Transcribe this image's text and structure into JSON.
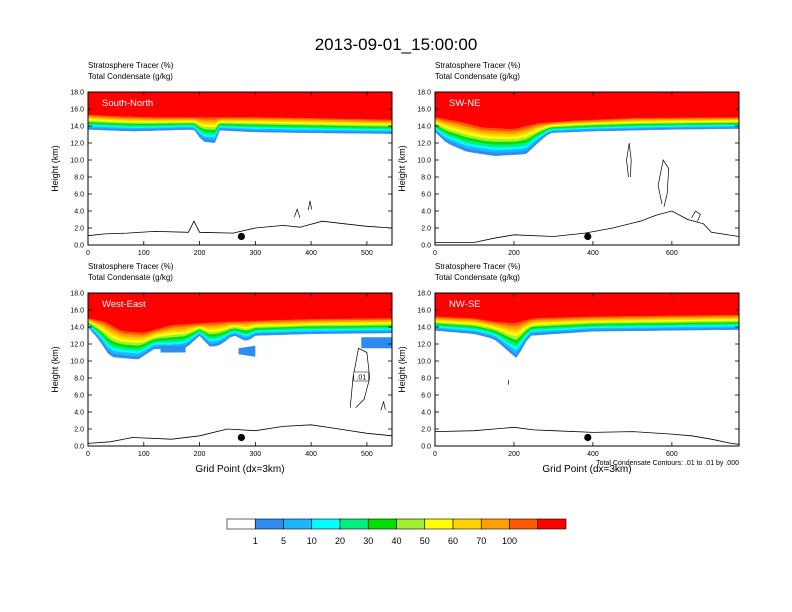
{
  "title": "2013-09-01_15:00:00",
  "footnote": "Total Condensate Contours: .01 to .01 by .000",
  "colorbar": {
    "colors": [
      "#ffffff",
      "#2e8cf0",
      "#1eb4ff",
      "#00ffff",
      "#00f080",
      "#00e000",
      "#a0f030",
      "#ffff00",
      "#ffd200",
      "#ffa000",
      "#ff5a00",
      "#ff0000"
    ],
    "labels": [
      "1",
      "5",
      "10",
      "20",
      "30",
      "40",
      "50",
      "60",
      "70",
      "100"
    ]
  },
  "chart_data": [
    {
      "type": "contour",
      "panel_label": "South-North",
      "title_line1": "Stratosphere Tracer   (%)",
      "title_line2": "Total Condensate   (g/kg)",
      "ylabel": "Height (km)",
      "xlabel": "",
      "xlim": [
        0,
        545
      ],
      "ylim": [
        0,
        18
      ],
      "xticks": [
        "0",
        "100",
        "200",
        "300",
        "400",
        "500"
      ],
      "xtick_values": [
        0,
        100,
        200,
        300,
        400,
        500
      ],
      "yticks": [
        "0.0",
        "2.0",
        "4.0",
        "6.0",
        "8.0",
        "10.0",
        "12.0",
        "14.0",
        "16.0",
        "18.0"
      ],
      "tracer_band_km": {
        "red_top_km": 18.0,
        "orange_lower_edge_km": [
          [
            0,
            15.3
          ],
          [
            60,
            15.1
          ],
          [
            120,
            15.0
          ],
          [
            200,
            15.0
          ],
          [
            300,
            15.0
          ],
          [
            400,
            14.9
          ],
          [
            545,
            14.7
          ]
        ],
        "tracer_bottom_km": [
          [
            0,
            13.6
          ],
          [
            80,
            13.4
          ],
          [
            190,
            13.6
          ],
          [
            205,
            12.2
          ],
          [
            230,
            12.0
          ],
          [
            235,
            13.5
          ],
          [
            300,
            13.3
          ],
          [
            400,
            13.2
          ],
          [
            545,
            13.1
          ]
        ]
      },
      "terrain_km": [
        [
          0,
          1.1
        ],
        [
          30,
          1.3
        ],
        [
          70,
          1.4
        ],
        [
          120,
          1.6
        ],
        [
          180,
          1.5
        ],
        [
          190,
          2.8
        ],
        [
          200,
          1.5
        ],
        [
          260,
          1.4
        ],
        [
          300,
          2.0
        ],
        [
          350,
          2.3
        ],
        [
          380,
          2.1
        ],
        [
          420,
          2.8
        ],
        [
          460,
          2.5
        ],
        [
          500,
          2.2
        ],
        [
          545,
          2.0
        ]
      ],
      "condensate_contours": [
        [
          [
            370,
            3.3
          ],
          [
            375,
            4.2
          ],
          [
            380,
            3.2
          ]
        ],
        [
          [
            395,
            4.1
          ],
          [
            398,
            5.2
          ],
          [
            401,
            4.2
          ]
        ]
      ],
      "marker": {
        "x": 275,
        "y_km": 1.0
      }
    },
    {
      "type": "contour",
      "panel_label": "SW-NE",
      "title_line1": "Stratosphere Tracer   (%)",
      "title_line2": "Total Condensate   (g/kg)",
      "ylabel": "Height (km)",
      "xlabel": "",
      "xlim": [
        0,
        770
      ],
      "ylim": [
        0,
        18
      ],
      "xticks": [
        "0",
        "200",
        "400",
        "600"
      ],
      "xtick_values": [
        0,
        200,
        400,
        600
      ],
      "yticks": [
        "0.0",
        "2.0",
        "4.0",
        "6.0",
        "8.0",
        "10.0",
        "12.0",
        "14.0",
        "16.0",
        "18.0"
      ],
      "tracer_band_km": {
        "red_top_km": 18.0,
        "orange_lower_edge_km": [
          [
            0,
            15.0
          ],
          [
            60,
            14.5
          ],
          [
            120,
            13.8
          ],
          [
            200,
            13.6
          ],
          [
            260,
            14.3
          ],
          [
            350,
            14.6
          ],
          [
            500,
            14.9
          ],
          [
            770,
            15.0
          ]
        ],
        "tracer_bottom_km": [
          [
            0,
            13.3
          ],
          [
            30,
            12.0
          ],
          [
            80,
            11.0
          ],
          [
            150,
            10.5
          ],
          [
            230,
            10.7
          ],
          [
            260,
            12.0
          ],
          [
            290,
            13.2
          ],
          [
            400,
            13.4
          ],
          [
            600,
            13.6
          ],
          [
            770,
            13.7
          ]
        ]
      },
      "terrain_km": [
        [
          0,
          0.3
        ],
        [
          100,
          0.3
        ],
        [
          150,
          0.8
        ],
        [
          200,
          1.2
        ],
        [
          300,
          1.0
        ],
        [
          380,
          1.4
        ],
        [
          450,
          2.0
        ],
        [
          520,
          2.8
        ],
        [
          560,
          3.5
        ],
        [
          600,
          4.0
        ],
        [
          640,
          3.0
        ],
        [
          680,
          2.5
        ],
        [
          700,
          1.5
        ],
        [
          770,
          1.0
        ]
      ],
      "condensate_contours": [
        [
          [
            490,
            8.0
          ],
          [
            485,
            10.0
          ],
          [
            492,
            12.0
          ],
          [
            497,
            10.0
          ],
          [
            495,
            8.0
          ]
        ],
        [
          [
            575,
            4.8
          ],
          [
            565,
            7.0
          ],
          [
            578,
            10.0
          ],
          [
            592,
            9.0
          ],
          [
            588,
            6.0
          ],
          [
            580,
            4.5
          ]
        ],
        [
          [
            650,
            3.2
          ],
          [
            660,
            4.0
          ],
          [
            672,
            3.6
          ],
          [
            665,
            2.8
          ]
        ]
      ],
      "marker": {
        "x": 387,
        "y_km": 1.0
      }
    },
    {
      "type": "contour",
      "panel_label": "West-East",
      "title_line1": "Stratosphere Tracer   (%)",
      "title_line2": "Total Condensate   (g/kg)",
      "ylabel": "Height (km)",
      "xlabel": "Grid Point (dx=3km)",
      "xlim": [
        0,
        545
      ],
      "ylim": [
        0,
        18
      ],
      "xticks": [
        "0",
        "100",
        "200",
        "300",
        "400",
        "500"
      ],
      "xtick_values": [
        0,
        100,
        200,
        300,
        400,
        500
      ],
      "yticks": [
        "0.0",
        "2.0",
        "4.0",
        "6.0",
        "8.0",
        "10.0",
        "12.0",
        "14.0",
        "16.0",
        "18.0"
      ],
      "tracer_band_km": {
        "red_top_km": 18.0,
        "orange_lower_edge_km": [
          [
            0,
            15.0
          ],
          [
            30,
            14.6
          ],
          [
            60,
            13.5
          ],
          [
            100,
            13.3
          ],
          [
            150,
            14.2
          ],
          [
            250,
            14.6
          ],
          [
            400,
            14.9
          ],
          [
            545,
            15.0
          ]
        ],
        "tracer_bottom_km": [
          [
            0,
            14.0
          ],
          [
            20,
            12.5
          ],
          [
            40,
            10.5
          ],
          [
            90,
            10.2
          ],
          [
            120,
            11.5
          ],
          [
            150,
            11.3
          ],
          [
            175,
            11.5
          ],
          [
            200,
            13.0
          ],
          [
            220,
            11.6
          ],
          [
            240,
            12.0
          ],
          [
            260,
            13.1
          ],
          [
            285,
            12.3
          ],
          [
            300,
            13.0
          ],
          [
            400,
            13.2
          ],
          [
            545,
            13.3
          ]
        ],
        "tracer_patches": [
          [
            [
              130,
              11.8
            ],
            [
              175,
              11.8
            ],
            [
              175,
              11.0
            ],
            [
              130,
              11.0
            ]
          ],
          [
            [
              270,
              11.5
            ],
            [
              300,
              11.8
            ],
            [
              300,
              10.5
            ],
            [
              270,
              10.8
            ]
          ],
          [
            [
              490,
              12.8
            ],
            [
              545,
              12.8
            ],
            [
              545,
              11.5
            ],
            [
              490,
              11.5
            ]
          ]
        ]
      },
      "terrain_km": [
        [
          0,
          0.3
        ],
        [
          40,
          0.5
        ],
        [
          80,
          1.0
        ],
        [
          150,
          0.8
        ],
        [
          200,
          1.2
        ],
        [
          250,
          2.0
        ],
        [
          300,
          1.8
        ],
        [
          350,
          2.3
        ],
        [
          400,
          2.5
        ],
        [
          450,
          2.0
        ],
        [
          500,
          1.5
        ],
        [
          545,
          1.2
        ]
      ],
      "condensate_contours": [
        [
          [
            470,
            4.5
          ],
          [
            475,
            8.0
          ],
          [
            485,
            11.5
          ],
          [
            500,
            11.0
          ],
          [
            505,
            8.0
          ],
          [
            495,
            5.5
          ],
          [
            480,
            4.5
          ]
        ],
        [
          [
            525,
            4.2
          ],
          [
            530,
            5.2
          ],
          [
            533,
            4.3
          ]
        ]
      ],
      "contour_label": ".01",
      "marker": {
        "x": 275,
        "y_km": 1.0
      }
    },
    {
      "type": "contour",
      "panel_label": "NW-SE",
      "title_line1": "Stratosphere Tracer   (%)",
      "title_line2": "Total Condensate   (g/kg)",
      "ylabel": "Height (km)",
      "xlabel": "Grid Point (dx=3km)",
      "xlim": [
        0,
        770
      ],
      "ylim": [
        0,
        18
      ],
      "xticks": [
        "0",
        "200",
        "400",
        "600"
      ],
      "xtick_values": [
        0,
        200,
        400,
        600
      ],
      "yticks": [
        "0.0",
        "2.0",
        "4.0",
        "6.0",
        "8.0",
        "10.0",
        "12.0",
        "14.0",
        "16.0",
        "18.0"
      ],
      "tracer_band_km": {
        "red_top_km": 18.0,
        "orange_lower_edge_km": [
          [
            0,
            15.2
          ],
          [
            100,
            15.0
          ],
          [
            150,
            14.6
          ],
          [
            200,
            14.4
          ],
          [
            250,
            15.0
          ],
          [
            400,
            15.2
          ],
          [
            770,
            15.4
          ]
        ],
        "tracer_bottom_km": [
          [
            0,
            13.6
          ],
          [
            100,
            13.2
          ],
          [
            150,
            12.6
          ],
          [
            190,
            11.0
          ],
          [
            210,
            10.2
          ],
          [
            220,
            11.5
          ],
          [
            240,
            13.0
          ],
          [
            400,
            13.5
          ],
          [
            770,
            13.7
          ]
        ]
      },
      "terrain_km": [
        [
          0,
          1.7
        ],
        [
          100,
          1.8
        ],
        [
          150,
          2.0
        ],
        [
          200,
          2.2
        ],
        [
          250,
          1.9
        ],
        [
          300,
          1.8
        ],
        [
          400,
          1.6
        ],
        [
          500,
          1.7
        ],
        [
          600,
          1.4
        ],
        [
          650,
          1.2
        ],
        [
          700,
          0.8
        ],
        [
          750,
          0.3
        ],
        [
          770,
          0.2
        ]
      ],
      "condensate_contours": [
        [
          [
            186,
            7.8
          ],
          [
            186,
            7.2
          ]
        ]
      ],
      "marker": {
        "x": 387,
        "y_km": 1.0
      }
    }
  ]
}
